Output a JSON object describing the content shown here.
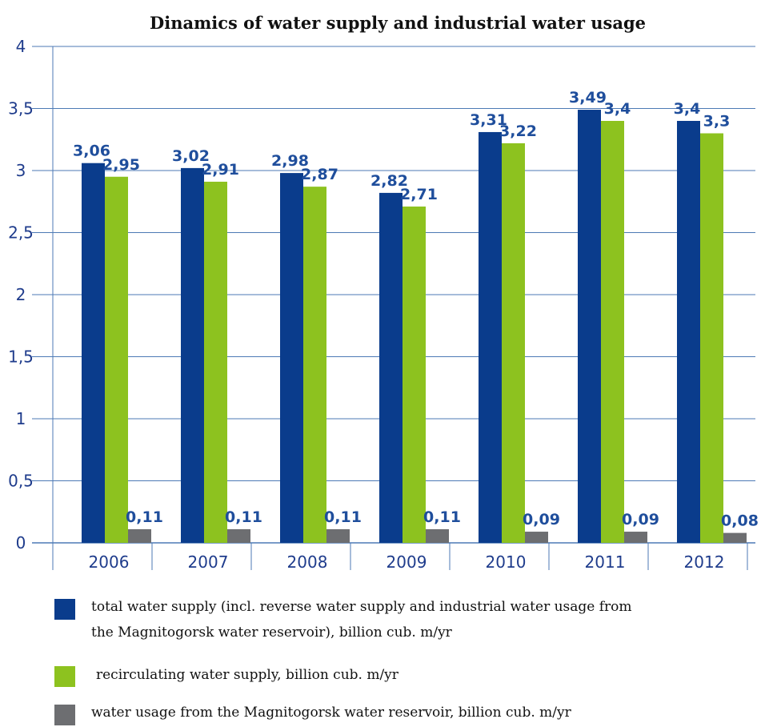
{
  "chart_data": {
    "type": "bar",
    "title": "Dinamics of water supply and industrial water usage",
    "xlabel": "",
    "ylabel": "",
    "categories": [
      "2006",
      "2007",
      "2008",
      "2009",
      "2010",
      "2011",
      "2012"
    ],
    "ylim": [
      0,
      4
    ],
    "yticks": [
      0,
      0.5,
      1,
      1.5,
      2,
      2.5,
      3,
      3.5,
      4
    ],
    "ytick_labels": [
      "0",
      "0,5",
      "1",
      "1,5",
      "2",
      "2,5",
      "3",
      "3,5",
      "4"
    ],
    "grid": true,
    "legend_position": "bottom",
    "series": [
      {
        "name": "total water supply (incl. reverse water supply and industrial water usage from the Magnitogorsk water reservoir), billion cub. m/yr",
        "legend_lines": [
          "total water supply (incl. reverse water supply and industrial water usage from",
          "the Magnitogorsk water reservoir), billion cub. m/yr"
        ],
        "color": "#0a3c8c",
        "values": [
          3.06,
          3.02,
          2.98,
          2.82,
          3.31,
          3.49,
          3.4
        ],
        "labels": [
          "3,06",
          "3,02",
          "2,98",
          "2,82",
          "3,31",
          "3,49",
          "3,4"
        ]
      },
      {
        "name": "recirculating water supply, billion cub. m/yr",
        "legend_lines": [
          "recirculating water supply, billion cub. m/yr"
        ],
        "color": "#8dc21f",
        "values": [
          2.95,
          2.91,
          2.87,
          2.71,
          3.22,
          3.4,
          3.3
        ],
        "labels": [
          "2,95",
          "2,91",
          "2,87",
          "2,71",
          "3,22",
          "3,4",
          "3,3"
        ]
      },
      {
        "name": "water usage from the Magnitogorsk water reservoir, billion cub. m/yr",
        "legend_lines": [
          "water usage from the Magnitogorsk water reservoir, billion cub. m/yr"
        ],
        "color": "#6d6e71",
        "values": [
          0.11,
          0.11,
          0.11,
          0.11,
          0.09,
          0.09,
          0.08
        ],
        "labels": [
          "0,11",
          "0,11",
          "0,11",
          "0,11",
          "0,09",
          "0,09",
          "0,08"
        ]
      }
    ],
    "colors": {
      "grid": "#4d7ab5",
      "axis_text": "#1f3c8c",
      "data_label": "#1f4e9c"
    }
  }
}
